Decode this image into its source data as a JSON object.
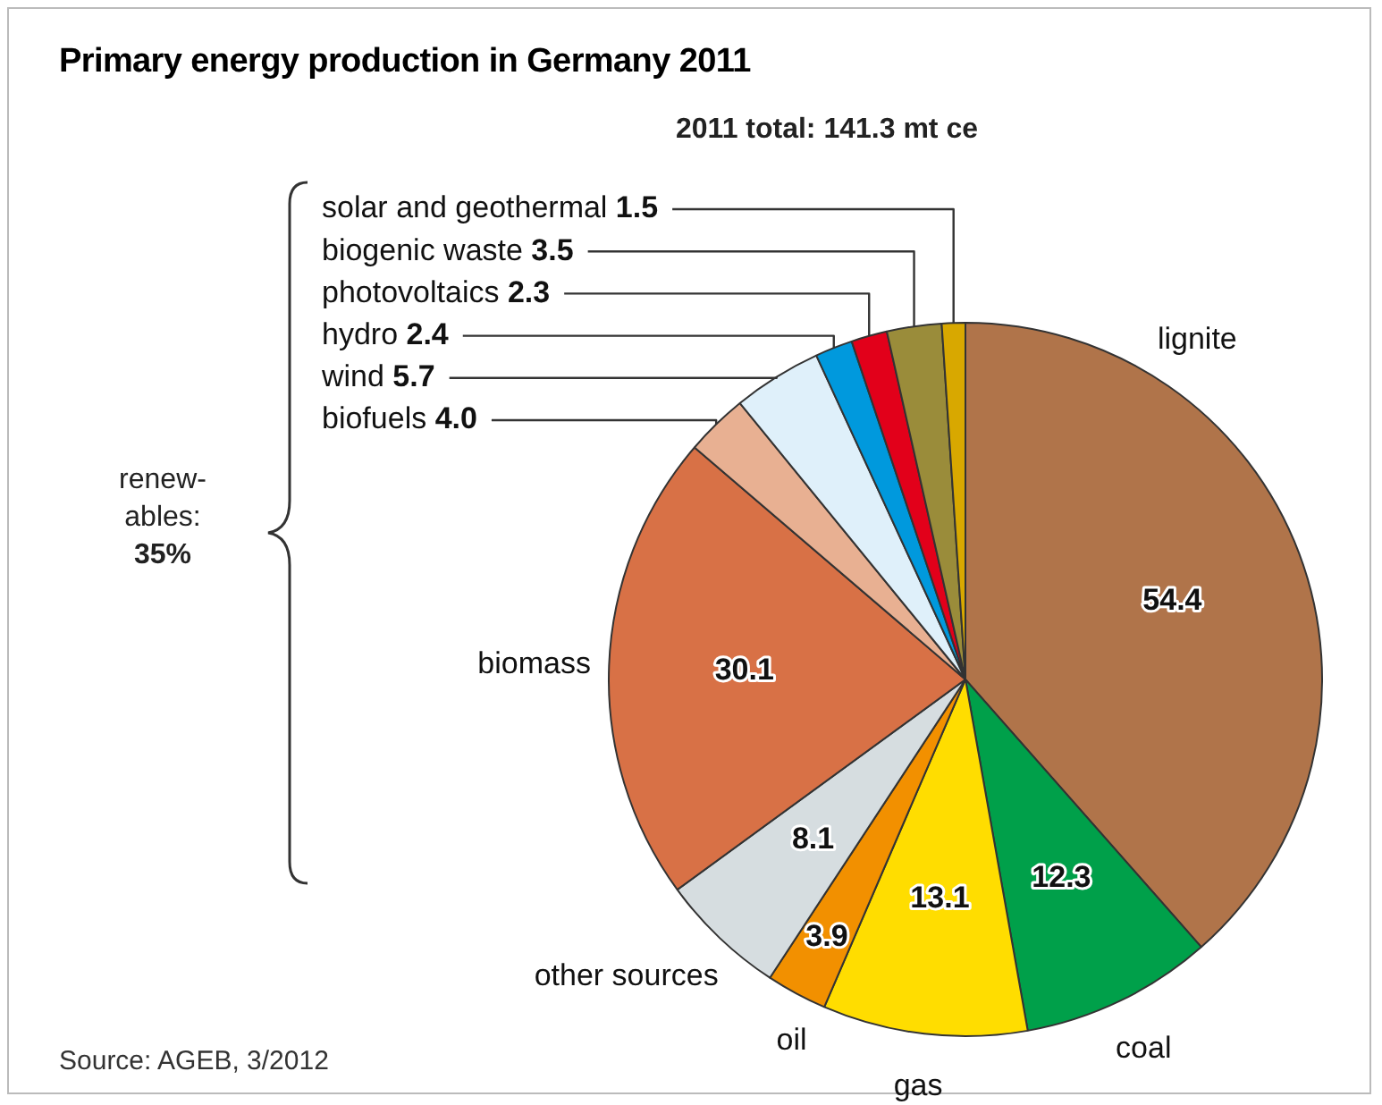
{
  "chart_data": {
    "type": "pie",
    "title": "Primary energy production in Germany 2011",
    "categories": [
      "lignite",
      "coal",
      "gas",
      "oil",
      "other sources",
      "biomass",
      "biofuels",
      "wind",
      "hydro",
      "photovoltaics",
      "biogenic waste",
      "solar and geothermal"
    ],
    "values": [
      54.4,
      12.3,
      13.1,
      3.9,
      8.1,
      30.1,
      4.0,
      5.7,
      2.4,
      2.3,
      3.5,
      1.5
    ],
    "colors": [
      "#b0744a",
      "#00a04a",
      "#ffdd00",
      "#f29000",
      "#d6dde0",
      "#d87146",
      "#e8b092",
      "#dff0fa",
      "#0099dd",
      "#e2001a",
      "#9a8c3a",
      "#d8a800"
    ],
    "data_labels": true,
    "value_labels": [
      "54.4",
      "12.3",
      "13.1",
      "3.9",
      "8.1",
      "30.1",
      "4.0",
      "5.7",
      "2.4",
      "2.3",
      "3.5",
      "1.5"
    ],
    "legend": false,
    "annotations": [
      "2011 total: 141.3 mt ce",
      "renew-ables: 35%",
      "Source: AGEB, 3/2012"
    ]
  }
}
